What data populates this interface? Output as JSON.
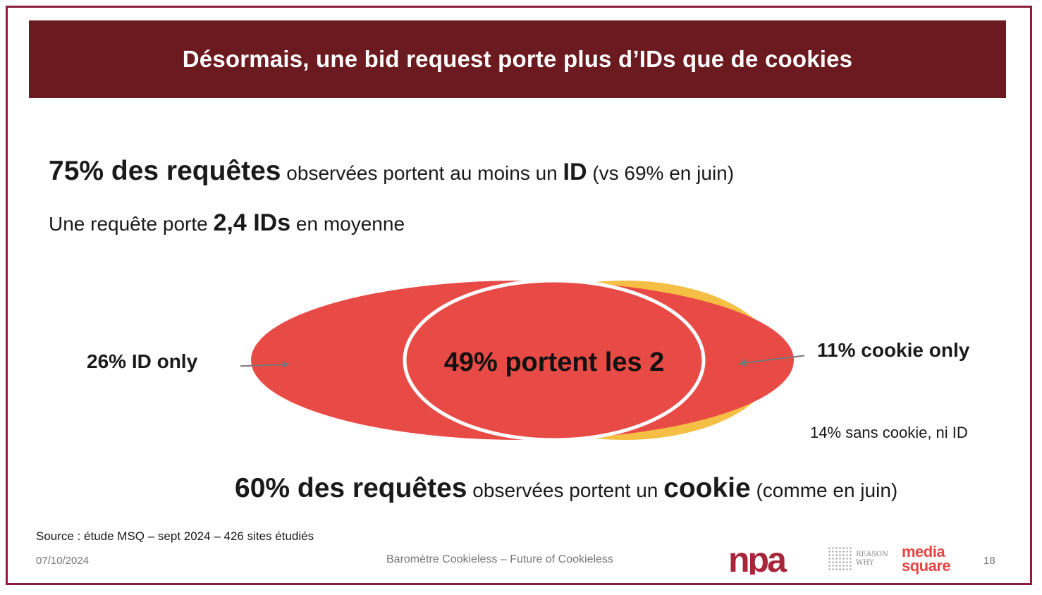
{
  "title": "Désormais, une bid request porte plus d’IDs que de cookies",
  "line1": {
    "bold_lead": "75% des requêtes",
    "text_a": " observées portent au moins un ",
    "bold_id": "ID",
    "text_b": " (vs 69% en juin)"
  },
  "line2": {
    "text_a": "Une requête porte ",
    "bold": "2,4 IDs",
    "text_b": " en moyenne"
  },
  "venn": {
    "center_label": "49% portent les 2",
    "left_label": "26% ID only",
    "right_label": "11% cookie only",
    "none_label": "14% sans cookie, ni ID",
    "id_color": "#e84a45",
    "cookie_color": "#f5bf45"
  },
  "line3": {
    "bold_lead": "60% des requêtes",
    "text_a": " observées portent un ",
    "bold_cookie": "cookie",
    "text_b": " (comme en juin)"
  },
  "footer": {
    "source": "Source : étude MSQ – sept 2024 – 426 sites étudiés",
    "date": "07/10/2024",
    "center": "Baromètre Cookieless – Future of Cookieless",
    "page": "18",
    "logo_npa": "npa",
    "logo_reason_1": "REASON",
    "logo_reason_2": "WHY",
    "logo_ms_1": "media",
    "logo_ms_2": "square"
  }
}
